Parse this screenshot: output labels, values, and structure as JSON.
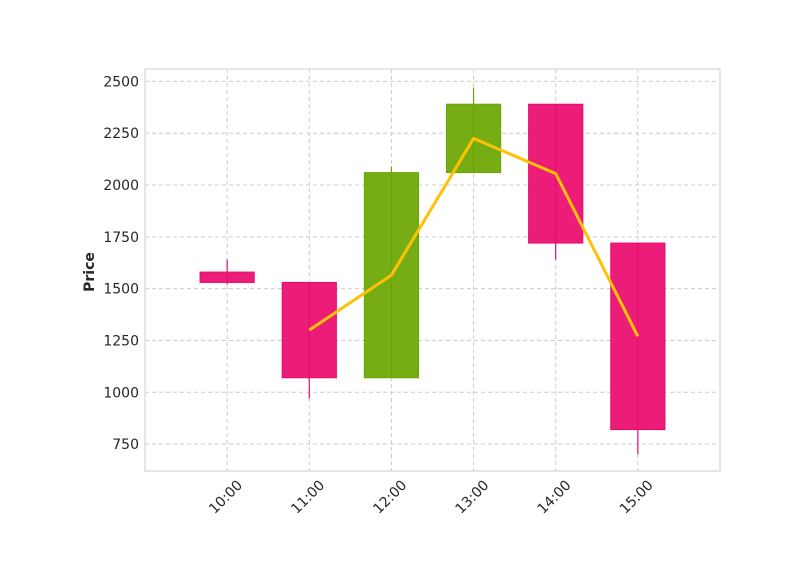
{
  "chart_data": {
    "type": "candlestick",
    "title": "",
    "xlabel": "",
    "ylabel": "Price",
    "ylim": [
      620,
      2560
    ],
    "xlim": [
      9,
      16
    ],
    "yticks": [
      750,
      1000,
      1250,
      1500,
      1750,
      2000,
      2250,
      2500
    ],
    "grid": true,
    "legend": "none",
    "categories": [
      "10:00",
      "11:00",
      "12:00",
      "13:00",
      "14:00",
      "15:00"
    ],
    "candles": [
      {
        "time": "10:00",
        "open": 1580,
        "high": 1640,
        "low": 1520,
        "close": 1530
      },
      {
        "time": "11:00",
        "open": 1530,
        "high": 1530,
        "low": 970,
        "close": 1070
      },
      {
        "time": "12:00",
        "open": 1070,
        "high": 2090,
        "low": 1070,
        "close": 2060
      },
      {
        "time": "13:00",
        "open": 2060,
        "high": 2470,
        "low": 2060,
        "close": 2390
      },
      {
        "time": "14:00",
        "open": 2390,
        "high": 2390,
        "low": 1640,
        "close": 1720
      },
      {
        "time": "15:00",
        "open": 1720,
        "high": 1720,
        "low": 700,
        "close": 820
      }
    ],
    "line": {
      "x": [
        "11:00",
        "12:00",
        "13:00",
        "14:00",
        "15:00"
      ],
      "values": [
        1300,
        1565,
        2225,
        2055,
        1270
      ]
    },
    "colors": {
      "up": "#6aa600",
      "down": "#ea0a6e",
      "line": "#ffc107",
      "grid": "#cccccc",
      "frame": "#dddddd"
    }
  }
}
